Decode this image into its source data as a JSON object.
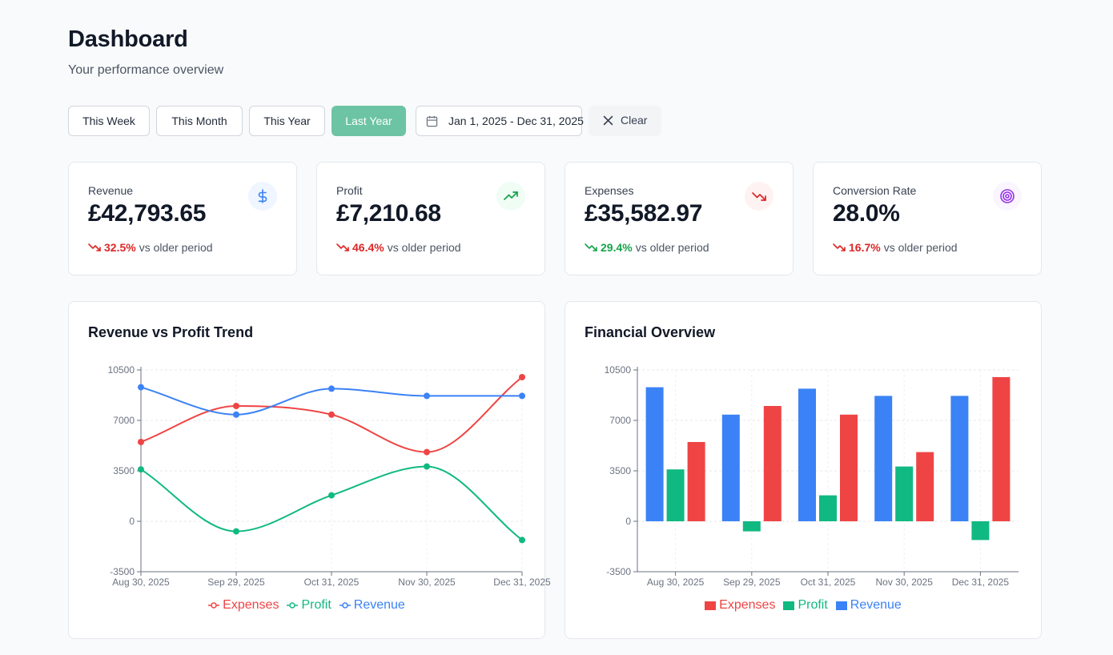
{
  "header": {
    "title": "Dashboard",
    "subtitle": "Your performance overview"
  },
  "filters": {
    "buttons": [
      "This Week",
      "This Month",
      "This Year",
      "Last Year"
    ],
    "active": "Last Year",
    "active_color": "#6cc4a4",
    "date_range": "Jan 1, 2025 - Dec 31, 2025",
    "clear_label": "Clear",
    "calendar_icon": "calendar-icon",
    "clear_icon": "close-icon"
  },
  "kpis": [
    {
      "label": "Revenue",
      "value": "£42,793.65",
      "change": "32.5%",
      "direction": "down",
      "change_color": "#dc2626",
      "suffix": "vs older period",
      "icon": "dollar-icon",
      "icon_color": "#3b82f6",
      "icon_bg": "#eff6ff"
    },
    {
      "label": "Profit",
      "value": "£7,210.68",
      "change": "46.4%",
      "direction": "down",
      "change_color": "#dc2626",
      "suffix": "vs older period",
      "icon": "trending-up-icon",
      "icon_color": "#16a34a",
      "icon_bg": "#f0fdf4"
    },
    {
      "label": "Expenses",
      "value": "£35,582.97",
      "change": "29.4%",
      "direction": "down",
      "change_color": "#16a34a",
      "suffix": "vs older period",
      "icon": "trending-down-icon",
      "icon_color": "#dc2626",
      "icon_bg": "#fef2f2"
    },
    {
      "label": "Conversion Rate",
      "value": "28.0%",
      "change": "16.7%",
      "direction": "down",
      "change_color": "#dc2626",
      "suffix": "vs older period",
      "icon": "target-icon",
      "icon_color": "#9333ea",
      "icon_bg": "#faf5ff"
    }
  ],
  "chart_data": [
    {
      "type": "line",
      "title": "Revenue vs Profit Trend",
      "categories": [
        "Aug 30, 2025",
        "Sep 29, 2025",
        "Oct 31, 2025",
        "Nov 30, 2025",
        "Dec 31, 2025"
      ],
      "yticks": [
        -3500,
        0,
        3500,
        7000,
        10500
      ],
      "ylim": [
        -3500,
        10500
      ],
      "grid": true,
      "legend_position": "bottom",
      "series": [
        {
          "name": "Expenses",
          "color": "#ef4444",
          "values": [
            5500,
            8000,
            7400,
            4800,
            10000
          ]
        },
        {
          "name": "Profit",
          "color": "#10b981",
          "values": [
            3600,
            -700,
            1800,
            3800,
            -1300
          ]
        },
        {
          "name": "Revenue",
          "color": "#3b82f6",
          "values": [
            9300,
            7400,
            9200,
            8700,
            8700
          ]
        }
      ]
    },
    {
      "type": "bar",
      "title": "Financial Overview",
      "categories": [
        "Aug 30, 2025",
        "Sep 29, 2025",
        "Oct 31, 2025",
        "Nov 30, 2025",
        "Dec 31, 2025"
      ],
      "yticks": [
        -3500,
        0,
        3500,
        7000,
        10500
      ],
      "ylim": [
        -3500,
        10500
      ],
      "grid": true,
      "legend_position": "bottom",
      "series": [
        {
          "name": "Revenue",
          "color": "#3b82f6",
          "values": [
            9300,
            7400,
            9200,
            8700,
            8700
          ]
        },
        {
          "name": "Profit",
          "color": "#10b981",
          "values": [
            3600,
            -700,
            1800,
            3800,
            -1300
          ]
        },
        {
          "name": "Expenses",
          "color": "#ef4444",
          "values": [
            5500,
            8000,
            7400,
            4800,
            10000
          ]
        }
      ],
      "legend_order": [
        "Expenses",
        "Profit",
        "Revenue"
      ]
    }
  ]
}
